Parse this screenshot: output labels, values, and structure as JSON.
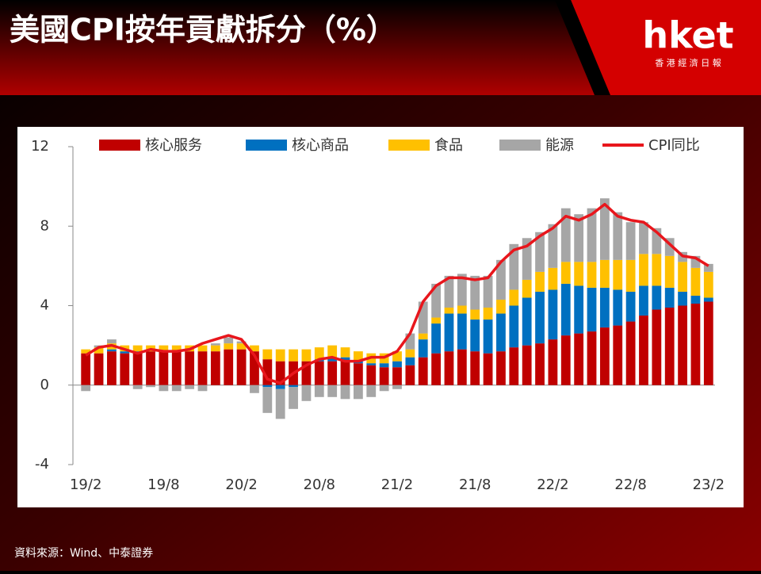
{
  "header": {
    "title": "美國CPI按年貢獻拆分（%）",
    "logo": "hket",
    "logo_sub": "香 港 經 濟 日 報"
  },
  "source": "資料來源：Wind、中泰證券",
  "chart_data": {
    "type": "stacked-bar-line",
    "categories": [
      "19/2",
      null,
      null,
      null,
      null,
      null,
      "19/8",
      null,
      null,
      null,
      null,
      null,
      "20/2",
      null,
      null,
      null,
      null,
      null,
      "20/8",
      null,
      null,
      null,
      null,
      null,
      "21/2",
      null,
      null,
      null,
      null,
      null,
      "21/8",
      null,
      null,
      null,
      null,
      null,
      "22/2",
      null,
      null,
      null,
      null,
      null,
      "22/8",
      null,
      null,
      null,
      null,
      null,
      "23/2"
    ],
    "series": [
      {
        "name": "核心服务",
        "color": "#c00000",
        "values": [
          1.6,
          1.6,
          1.7,
          1.6,
          1.6,
          1.7,
          1.7,
          1.7,
          1.7,
          1.7,
          1.7,
          1.8,
          1.8,
          1.7,
          1.3,
          1.2,
          1.2,
          1.2,
          1.2,
          1.2,
          1.2,
          1.1,
          1.0,
          0.9,
          0.9,
          1.0,
          1.4,
          1.6,
          1.7,
          1.8,
          1.7,
          1.6,
          1.7,
          1.9,
          2.0,
          2.1,
          2.3,
          2.5,
          2.6,
          2.7,
          2.9,
          3.0,
          3.2,
          3.5,
          3.8,
          3.9,
          4.0,
          4.1,
          4.2
        ]
      },
      {
        "name": "核心商品",
        "color": "#0070c0",
        "values": [
          0.0,
          0.0,
          0.1,
          0.1,
          0.1,
          0.0,
          0.0,
          0.0,
          0.0,
          0.0,
          0.0,
          0.0,
          0.0,
          0.0,
          -0.1,
          -0.2,
          -0.1,
          0.0,
          0.1,
          0.2,
          0.2,
          0.1,
          0.1,
          0.2,
          0.3,
          0.4,
          0.9,
          1.5,
          1.9,
          1.8,
          1.6,
          1.7,
          1.9,
          2.1,
          2.4,
          2.6,
          2.5,
          2.6,
          2.4,
          2.2,
          2.0,
          1.8,
          1.5,
          1.5,
          1.2,
          1.0,
          0.7,
          0.4,
          0.2
        ]
      },
      {
        "name": "食品",
        "color": "#ffc000",
        "values": [
          0.2,
          0.3,
          0.3,
          0.3,
          0.3,
          0.3,
          0.3,
          0.3,
          0.3,
          0.3,
          0.3,
          0.3,
          0.3,
          0.3,
          0.5,
          0.6,
          0.6,
          0.6,
          0.6,
          0.6,
          0.5,
          0.5,
          0.5,
          0.5,
          0.5,
          0.4,
          0.3,
          0.3,
          0.3,
          0.4,
          0.5,
          0.6,
          0.7,
          0.8,
          0.9,
          1.0,
          1.1,
          1.1,
          1.2,
          1.3,
          1.4,
          1.5,
          1.6,
          1.6,
          1.6,
          1.6,
          1.5,
          1.4,
          1.3
        ]
      },
      {
        "name": "能源",
        "color": "#a6a6a6",
        "values": [
          -0.3,
          0.1,
          0.2,
          0.0,
          -0.2,
          -0.1,
          -0.3,
          -0.3,
          -0.2,
          -0.3,
          0.1,
          0.3,
          0.1,
          -0.4,
          -1.3,
          -1.5,
          -1.1,
          -0.8,
          -0.6,
          -0.6,
          -0.7,
          -0.7,
          -0.6,
          -0.3,
          -0.2,
          0.8,
          1.6,
          1.7,
          1.6,
          1.6,
          1.7,
          1.6,
          2.0,
          2.3,
          2.1,
          2.0,
          2.2,
          2.7,
          2.4,
          2.7,
          3.1,
          2.4,
          1.9,
          1.6,
          1.3,
          0.9,
          0.5,
          0.6,
          0.4
        ]
      }
    ],
    "line": {
      "name": "CPI同比",
      "color": "#e8161c",
      "values": [
        1.5,
        1.9,
        2.0,
        1.8,
        1.6,
        1.8,
        1.7,
        1.7,
        1.8,
        2.1,
        2.3,
        2.5,
        2.3,
        1.5,
        0.3,
        0.1,
        0.6,
        1.0,
        1.3,
        1.4,
        1.2,
        1.2,
        1.4,
        1.4,
        1.7,
        2.6,
        4.2,
        5.0,
        5.4,
        5.4,
        5.3,
        5.4,
        6.2,
        6.8,
        7.0,
        7.5,
        7.9,
        8.5,
        8.3,
        8.6,
        9.1,
        8.5,
        8.3,
        8.2,
        7.7,
        7.1,
        6.5,
        6.4,
        6.0
      ]
    },
    "ylim": [
      -4,
      12
    ],
    "yticks": [
      -4,
      0,
      4,
      8,
      12
    ]
  }
}
